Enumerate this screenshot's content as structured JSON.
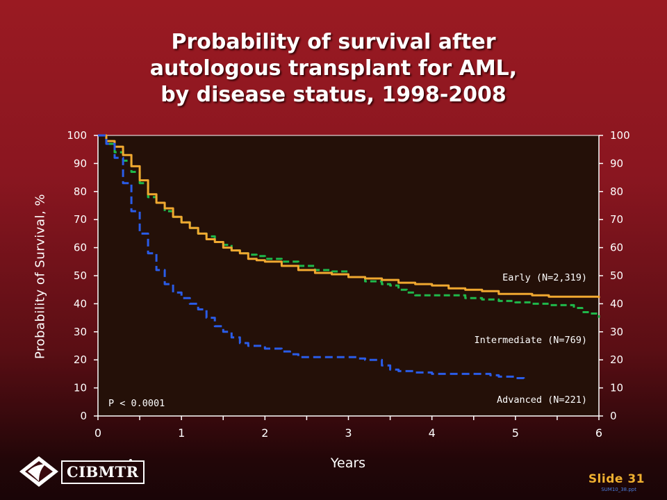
{
  "title_lines": [
    "Probability of survival after",
    "autologous transplant for AML,",
    "by disease status, 1998-2008"
  ],
  "footer": {
    "logo_text": "CIBMTR",
    "slide_label": "Slide 31",
    "file_name": "SUM10_38.ppt"
  },
  "colors": {
    "plot_background": "#241008",
    "early": "#f0a830",
    "intermediate": "#1fb84a",
    "advanced": "#2a5ce8",
    "axis": "#ffffff",
    "text": "#ffffff"
  },
  "chart_data": {
    "type": "line",
    "title": "",
    "xlabel": "Years",
    "ylabel": "Probability of Survival, %",
    "xlim": [
      0,
      6
    ],
    "ylim": [
      0,
      100
    ],
    "x_ticks": [
      "0",
      "1",
      "2",
      "3",
      "4",
      "5",
      "6"
    ],
    "y_ticks": [
      "0",
      "10",
      "20",
      "30",
      "40",
      "50",
      "60",
      "70",
      "80",
      "90",
      "100"
    ],
    "annotation": "P < 0.0001",
    "series": [
      {
        "name": "Early (N=2,319)",
        "style": "solid",
        "x": [
          0,
          0.1,
          0.2,
          0.3,
          0.4,
          0.5,
          0.6,
          0.7,
          0.8,
          0.9,
          1.0,
          1.1,
          1.2,
          1.3,
          1.4,
          1.5,
          1.6,
          1.7,
          1.8,
          1.9,
          2.0,
          2.2,
          2.4,
          2.6,
          2.8,
          3.0,
          3.2,
          3.4,
          3.6,
          3.8,
          4.0,
          4.2,
          4.4,
          4.6,
          4.8,
          5.0,
          5.2,
          5.4,
          5.6,
          5.8,
          6.0
        ],
        "y": [
          100,
          98,
          96,
          93,
          89,
          84,
          79,
          76,
          74,
          71,
          69,
          67,
          65,
          63,
          62,
          60,
          59,
          58,
          56,
          55.5,
          55,
          53.5,
          52,
          51,
          50.5,
          49.5,
          49,
          48.5,
          47.5,
          47,
          46.5,
          45.5,
          45,
          44.5,
          43.5,
          43.5,
          43,
          42.5,
          42.5,
          42.5,
          42
        ]
      },
      {
        "name": "Intermediate (N=769)",
        "style": "dashed",
        "x": [
          0,
          0.1,
          0.2,
          0.3,
          0.4,
          0.5,
          0.6,
          0.7,
          0.8,
          0.9,
          1.0,
          1.1,
          1.2,
          1.3,
          1.4,
          1.5,
          1.6,
          1.7,
          1.8,
          1.9,
          2.0,
          2.2,
          2.4,
          2.6,
          2.8,
          3.0,
          3.2,
          3.4,
          3.5,
          3.6,
          3.7,
          3.8,
          4.0,
          4.2,
          4.4,
          4.6,
          4.8,
          5.0,
          5.2,
          5.4,
          5.6,
          5.7,
          5.8,
          5.9,
          6.0
        ],
        "y": [
          100,
          97,
          94,
          91,
          87,
          83,
          78,
          76,
          73,
          71,
          69,
          67,
          65,
          64,
          62,
          61,
          59,
          58,
          57.5,
          57,
          56,
          55,
          53.5,
          52,
          51.5,
          49.5,
          48,
          47,
          46.5,
          45,
          44,
          43,
          43,
          43,
          42,
          41.5,
          41,
          40.5,
          40,
          39.5,
          39.5,
          38.5,
          37,
          36.5,
          35
        ]
      },
      {
        "name": "Advanced (N=221)",
        "style": "dashed",
        "x": [
          0,
          0.1,
          0.2,
          0.3,
          0.4,
          0.5,
          0.6,
          0.7,
          0.8,
          0.9,
          1.0,
          1.1,
          1.2,
          1.3,
          1.4,
          1.5,
          1.6,
          1.7,
          1.8,
          1.9,
          2.0,
          2.2,
          2.3,
          2.4,
          2.6,
          2.8,
          3.0,
          3.1,
          3.2,
          3.4,
          3.5,
          3.6,
          3.8,
          4.0,
          4.2,
          4.4,
          4.6,
          4.7,
          4.8,
          5.0,
          5.1
        ],
        "y": [
          100,
          97,
          92,
          83,
          73,
          65,
          58,
          52,
          47,
          44,
          42,
          40,
          38,
          35,
          32,
          30,
          28,
          26,
          25,
          25,
          24,
          23,
          22,
          21,
          21,
          21,
          21,
          20.5,
          20,
          18,
          16.5,
          16,
          15.5,
          15,
          15,
          15,
          15,
          14.5,
          14,
          13.5,
          13
        ]
      }
    ],
    "series_labels": [
      "Early (N=2,319)",
      "Intermediate (N=769)",
      "Advanced (N=221)"
    ]
  }
}
